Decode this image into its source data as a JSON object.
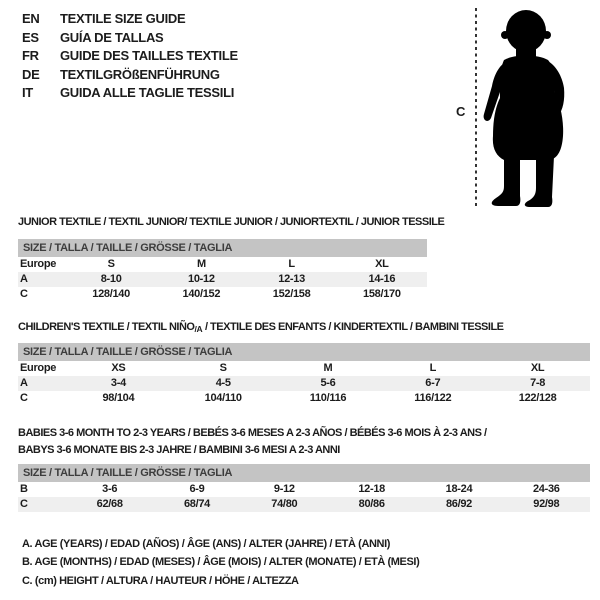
{
  "colors": {
    "header_bar": "#c4c4c4",
    "alt_row": "#efefef",
    "text": "#1c1c1c",
    "silhouette": "#000000"
  },
  "languages": [
    {
      "code": "EN",
      "text": "TEXTILE SIZE GUIDE"
    },
    {
      "code": "ES",
      "text": "GUÍA DE TALLAS"
    },
    {
      "code": "FR",
      "text": "GUIDE DES TAILLES TEXTILE"
    },
    {
      "code": "DE",
      "text": "TEXTILGRÖßENFÜHRUNG"
    },
    {
      "code": "IT",
      "text": "GUIDA ALLE TAGLIE TESSILI"
    }
  ],
  "figure": {
    "measure_label": "C"
  },
  "tables": [
    {
      "title": "JUNIOR TEXTILE / TEXTIL JUNIOR/ TEXTILE JUNIOR / JUNIORTEXTIL / JUNIOR TESSILE",
      "size_header": "SIZE / TALLA / TAILLE / GRÖSSE / TAGLIA",
      "rows": [
        [
          "Europe",
          "S",
          "M",
          "L",
          "XL"
        ],
        [
          "A",
          "8-10",
          "10-12",
          "12-13",
          "14-16"
        ],
        [
          "C",
          "128/140",
          "140/152",
          "152/158",
          "158/170"
        ]
      ]
    },
    {
      "title_main": "CHILDREN'S TEXTILE / TEXTIL NIÑO",
      "title_sub": "/A",
      "title_rest": " / TEXTILE DES ENFANTS / KINDERTEXTIL / BAMBINI TESSILE",
      "size_header": "SIZE / TALLA / TAILLE / GRÖSSE / TAGLIA",
      "rows": [
        [
          "Europe",
          "XS",
          "S",
          "M",
          "L",
          "XL"
        ],
        [
          "A",
          "3-4",
          "4-5",
          "5-6",
          "6-7",
          "7-8"
        ],
        [
          "C",
          "98/104",
          "104/110",
          "110/116",
          "116/122",
          "122/128"
        ]
      ]
    },
    {
      "title_line1": "BABIES 3-6 MONTH TO 2-3 YEARS / BEBÉS 3-6 MESES A 2-3 AÑOS / BÉBÉS 3-6 MOIS À 2-3 ANS /",
      "title_line2": "BABYS 3-6 MONATE BIS 2-3 JAHRE / BAMBINI 3-6 MESI A 2-3 ANNI",
      "size_header": "SIZE / TALLA / TAILLE / GRÖSSE / TAGLIA",
      "rows": [
        [
          "B",
          "3-6",
          "6-9",
          "9-12",
          "12-18",
          "18-24",
          "24-36"
        ],
        [
          "C",
          "62/68",
          "68/74",
          "74/80",
          "80/86",
          "86/92",
          "92/98"
        ]
      ]
    }
  ],
  "legend": [
    "A. AGE (YEARS) / EDAD (AÑOS) / ÂGE (ANS) / ALTER (JAHRE) / ETÀ (ANNI)",
    "B. AGE (MONTHS) / EDAD (MESES) / ÂGE (MOIS) / ALTER (MONATE) / ETÀ (MESI)",
    "C. (cm) HEIGHT / ALTURA / HAUTEUR / HÖHE / ALTEZZA"
  ]
}
